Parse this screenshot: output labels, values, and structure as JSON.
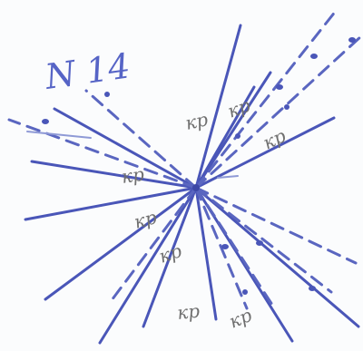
{
  "title": "N 14",
  "label": "кр",
  "colors": {
    "paper": "#fbfcfd",
    "ink_blue": "#4a56b8",
    "ink_light": "#8f9ad6",
    "pencil": "#7f7f7f"
  }
}
